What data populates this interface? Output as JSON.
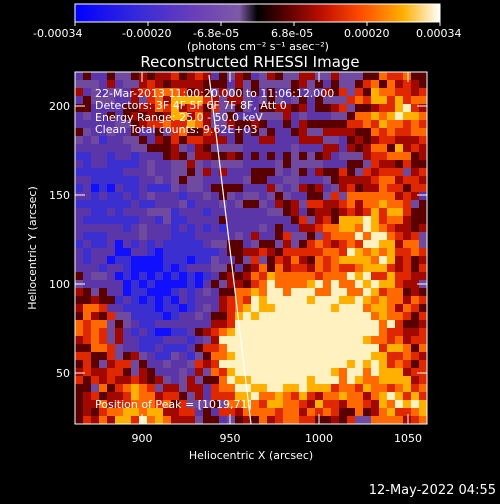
{
  "colorbar": {
    "ticks": [
      "-0.00034",
      "-0.00020",
      "-6.8e-05",
      "6.8e-05",
      "0.00020",
      "0.00034"
    ],
    "unit_label": "(photons cm⁻² s⁻¹ asec⁻²)",
    "stops": [
      "#0000ff",
      "#3a2bd8",
      "#6a3fb8",
      "#7d5aa6",
      "#000000",
      "#5a0000",
      "#c01000",
      "#ff4a00",
      "#ffb000",
      "#ffffff"
    ]
  },
  "plot": {
    "title": "Reconstructed RHESSI Image",
    "info_lines": [
      "22-Mar-2013 11:00:20.000 to 11:06:12.000",
      "Detectors: 3F 4F 5F 6F 7F 8F, Att 0",
      "Energy Range: 25.0 - 50.0 keV",
      "Clean     Total counts: 9.62E+03"
    ],
    "peak_label": "Position of Peak = [1019,71]",
    "xlabel": "Heliocentric X (arcsec)",
    "ylabel": "Heliocentric Y (arcsec)",
    "xticks": [
      "900",
      "950",
      "1000",
      "1050"
    ],
    "yticks": [
      "50",
      "100",
      "150",
      "200"
    ],
    "limb_color": "#ffffff"
  },
  "footer": {
    "timestamp": "12-May-2022 04:55"
  }
}
